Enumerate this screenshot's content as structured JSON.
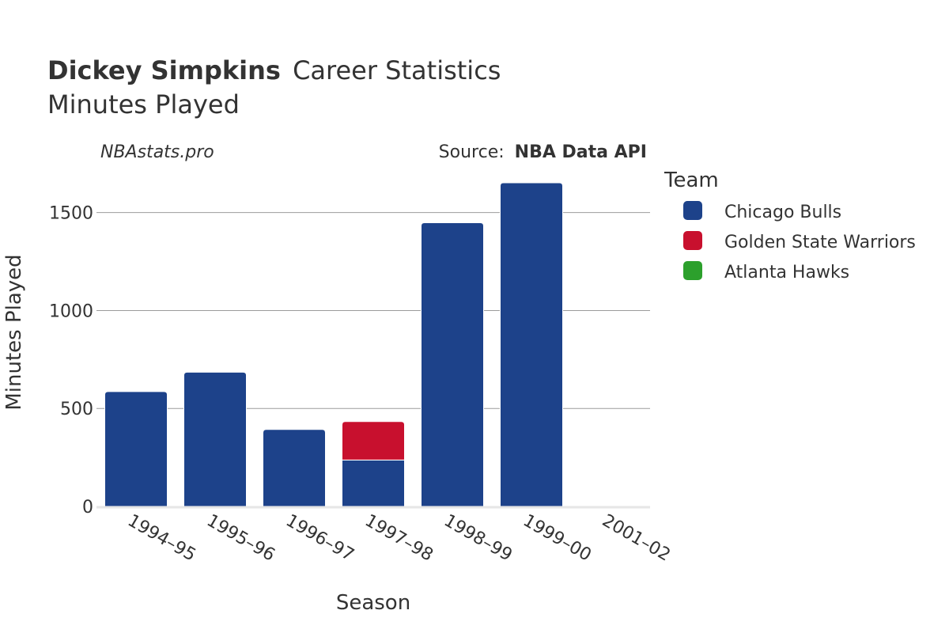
{
  "header": {
    "player_name": "Dickey Simpkins",
    "title_suffix": "Career Statistics",
    "subtitle": "Minutes Played"
  },
  "credit": "NBAstats.pro",
  "source": {
    "label": "Source:",
    "value": "NBA Data API"
  },
  "legend": {
    "title": "Team",
    "items": [
      {
        "label": "Chicago Bulls",
        "color": "#1d428a"
      },
      {
        "label": "Golden State Warriors",
        "color": "#c8102e"
      },
      {
        "label": "Atlanta Hawks",
        "color": "#2ca02c"
      }
    ]
  },
  "chart_data": {
    "type": "bar",
    "stacked": true,
    "xlabel": "Season",
    "ylabel": "Minutes Played",
    "categories": [
      "1994–95",
      "1995–96",
      "1996–97",
      "1997–98",
      "1998–99",
      "1999–00",
      "2001–02"
    ],
    "series": [
      {
        "name": "Chicago Bulls",
        "color": "#1d428a",
        "values": [
          586,
          685,
          393,
          237,
          1448,
          1652,
          0
        ]
      },
      {
        "name": "Golden State Warriors",
        "color": "#c8102e",
        "values": [
          0,
          0,
          0,
          196,
          0,
          0,
          0
        ]
      },
      {
        "name": "Atlanta Hawks",
        "color": "#2ca02c",
        "values": [
          0,
          0,
          0,
          0,
          0,
          0,
          4
        ]
      }
    ],
    "yticks": [
      0,
      500,
      1000,
      1500
    ],
    "ylim": [
      0,
      1737
    ],
    "grid": true,
    "legend_position": "right"
  }
}
